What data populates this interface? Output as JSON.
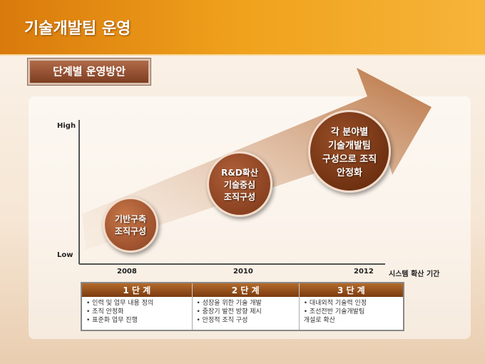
{
  "header": {
    "title": "기술개발팀 운영"
  },
  "badge": {
    "label": "단계별 운영방안"
  },
  "axis": {
    "high": "High",
    "low": "Low",
    "years": [
      "2008",
      "2010",
      "2012"
    ],
    "x_label": "시스템 확산 기간"
  },
  "stages": [
    {
      "circle": "기반구축\n조직구성",
      "header": "1 단 계",
      "items": "• 인력 및 업무 내용 정의\n• 조직 안정화\n• 표준화 업무 진행"
    },
    {
      "circle": "R&D확산\n기술중심\n조직구성",
      "header": "2 단 계",
      "items": "• 성장을 위한 기술 개발\n• 중장기 발전 방향 제시\n• 안정적 조직 구성"
    },
    {
      "circle": "각 분야별\n기술개발팀\n구성으로 조직\n안정화",
      "header": "3 단 계",
      "items": "• 대내외적 기술력 인정\n• 조선전반 기술개발팀\n  개설로 확산"
    }
  ],
  "colors": {
    "header": "#e8901a",
    "arrow": "#c98a5a",
    "circle": "#9a4f25"
  }
}
